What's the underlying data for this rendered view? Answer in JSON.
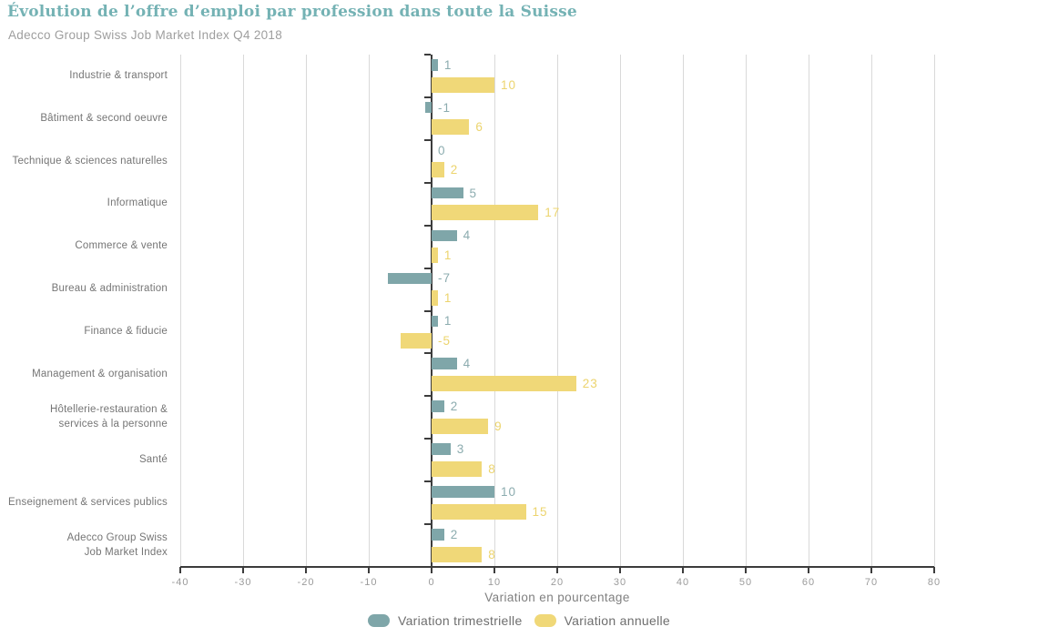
{
  "header": {
    "title": "Évolution de l’offre d’emploi par profession dans toute la Suisse",
    "subtitle": "Adecco Group Swiss Job Market Index Q4 2018"
  },
  "colors": {
    "title": "#74b2b4",
    "subtitle": "#9e9e9e",
    "grid": "#d9d9d9",
    "axis": "#3c3c3c",
    "tick_label": "#9b9b9b",
    "category_label": "#757575",
    "axis_title": "#808080",
    "legend_label": "#6e6e6e"
  },
  "chart_data": {
    "type": "bar",
    "orientation": "horizontal",
    "title": "Évolution de l’offre d’emploi par profession dans toute la Suisse",
    "subtitle": "Adecco Group Swiss Job Market Index Q4 2018",
    "xlabel": "Variation en pourcentage",
    "ylabel": "",
    "xlim": [
      -40,
      80
    ],
    "xticks": [
      -40,
      -30,
      -20,
      -10,
      0,
      10,
      20,
      30,
      40,
      50,
      60,
      70,
      80
    ],
    "grid": true,
    "legend_position": "bottom",
    "categories": [
      "Industrie & transport",
      "Bâtiment & second oeuvre",
      "Technique & sciences naturelles",
      "Informatique",
      "Commerce & vente",
      "Bureau & administration",
      "Finance & fiducie",
      "Management & organisation",
      "Hôtellerie-restauration &\nservices à la personne",
      "Santé",
      "Enseignement & services publics",
      "Adecco Group Swiss\nJob Market Index"
    ],
    "series": [
      {
        "name": "Variation trimestrielle",
        "color": "#7fa6a9",
        "label_color": "#8cacaf",
        "values": [
          1,
          -1,
          0,
          5,
          4,
          -7,
          1,
          4,
          2,
          3,
          10,
          2
        ]
      },
      {
        "name": "Variation annuelle",
        "color": "#f0d878",
        "label_color": "#ecd46e",
        "values": [
          10,
          6,
          2,
          17,
          1,
          1,
          -5,
          23,
          9,
          8,
          15,
          8
        ]
      }
    ]
  }
}
